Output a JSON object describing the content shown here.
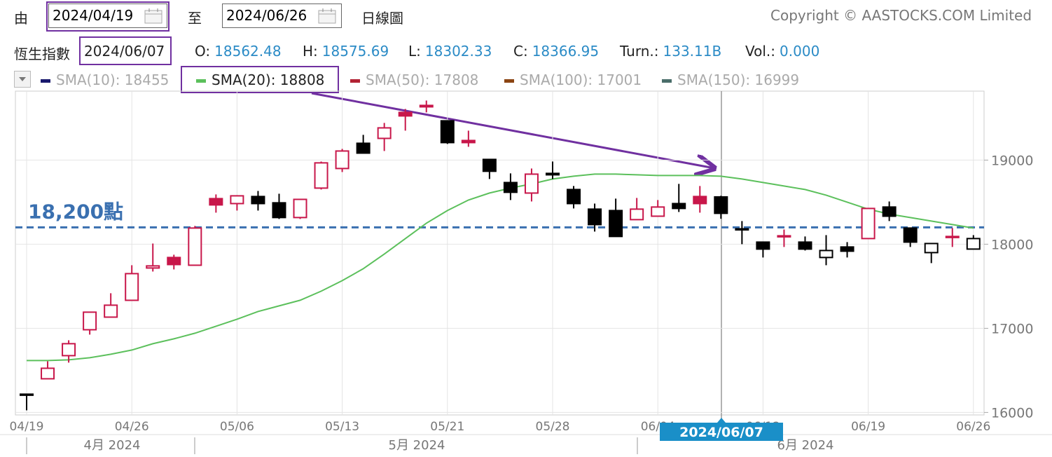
{
  "toolbar": {
    "from_label": "由",
    "from_date": "2024/04/19",
    "to_label": "至",
    "to_date": "2024/06/26",
    "chart_type": "日線圖",
    "copyright": "Copyright © AASTOCKS.COM Limited"
  },
  "info": {
    "index_name": "恆生指數",
    "date": "2024/06/07",
    "fields": [
      {
        "label": "O:",
        "value": 18562.48
      },
      {
        "label": "H:",
        "value": 18575.69
      },
      {
        "label": "L:",
        "value": 18302.33
      },
      {
        "label": "C:",
        "value": 18366.95
      },
      {
        "label": "Turn.:",
        "value": "133.11B"
      },
      {
        "label": "Vol.:",
        "value": "0.000"
      }
    ]
  },
  "chart_data": {
    "type": "candlestick",
    "categories": [
      "04/19",
      null,
      null,
      null,
      null,
      "04/26",
      null,
      null,
      null,
      null,
      "05/06",
      null,
      null,
      null,
      null,
      "05/13",
      null,
      null,
      null,
      null,
      "05/21",
      null,
      null,
      null,
      null,
      "05/28",
      null,
      null,
      null,
      null,
      "06/04",
      null,
      null,
      null,
      null,
      "06/12",
      null,
      null,
      null,
      null,
      "06/19",
      null,
      null,
      null,
      null,
      "06/26"
    ],
    "open": [
      16217,
      16400,
      16675,
      16983,
      17133,
      17333,
      17717,
      17842,
      17750,
      18542,
      18483,
      18567,
      18492,
      18317,
      18667,
      18900,
      19200,
      19258,
      19567,
      19650,
      19467,
      19233,
      19008,
      18733,
      18608,
      18842,
      18650,
      18417,
      18400,
      18292,
      18333,
      18483,
      18567,
      18562.48,
      18183,
      18025,
      18100,
      18025,
      17842,
      17967,
      18067,
      18442,
      18192,
      17900,
      18092,
      17942
    ],
    "high": [
      16217,
      16608,
      16858,
      17192,
      17417,
      17750,
      18008,
      17875,
      18217,
      18592,
      18583,
      18633,
      18600,
      18533,
      18983,
      19133,
      19300,
      19442,
      19608,
      19708,
      19467,
      19350,
      19008,
      18842,
      18900,
      18983,
      18692,
      18483,
      18542,
      18550,
      18525,
      18717,
      18692,
      18575.69,
      18275,
      18025,
      18175,
      18092,
      18108,
      18025,
      18425,
      18508,
      18192,
      18008,
      18192,
      18108
    ],
    "low": [
      16025,
      16400,
      16592,
      16925,
      17133,
      17333,
      17675,
      17700,
      17750,
      18375,
      18400,
      18400,
      18300,
      18300,
      18650,
      18858,
      19083,
      19108,
      19350,
      19567,
      19192,
      19158,
      18775,
      18525,
      18508,
      18775,
      18425,
      18150,
      18092,
      18292,
      18333,
      18383,
      18375,
      18302.33,
      18000,
      17842,
      17967,
      17925,
      17750,
      17842,
      18067,
      18275,
      17967,
      17775,
      17967,
      17942
    ],
    "close": [
      16217,
      16525,
      16817,
      17192,
      17275,
      17650,
      17742,
      17758,
      18192,
      18467,
      18575,
      18483,
      18317,
      18533,
      18967,
      19108,
      19083,
      19383,
      19525,
      19633,
      19208,
      19208,
      18867,
      18617,
      18833,
      18825,
      18483,
      18233,
      18092,
      18417,
      18442,
      18425,
      18483,
      18366.95,
      18175,
      17942,
      18092,
      17942,
      17925,
      17917,
      18425,
      18333,
      18025,
      18008,
      18083,
      18067
    ],
    "up_color": "#c8174a",
    "down_color": "#000000",
    "overlays": [
      {
        "name": "SMA(20)",
        "color": "#5cc05c",
        "values": [
          16617,
          16617,
          16625,
          16650,
          16692,
          16742,
          16817,
          16875,
          16942,
          17025,
          17108,
          17200,
          17267,
          17333,
          17442,
          17567,
          17708,
          17883,
          18067,
          18250,
          18400,
          18525,
          18608,
          18667,
          18717,
          18775,
          18808,
          18833,
          18833,
          18825,
          18817,
          18817,
          18817,
          18808,
          18775,
          18733,
          18692,
          18650,
          18583,
          18500,
          18417,
          18358,
          18317,
          18275,
          18233,
          18192
        ]
      }
    ],
    "legend": [
      {
        "label": "SMA(10): 18455",
        "color": "#1a1a6e",
        "active": false
      },
      {
        "label": "SMA(20): 18808",
        "color": "#5cc05c",
        "active": true
      },
      {
        "label": "SMA(50): 17808",
        "color": "#b22234",
        "active": false
      },
      {
        "label": "SMA(100): 17001",
        "color": "#8b4513",
        "active": false
      },
      {
        "label": "SMA(150): 16999",
        "color": "#4a6e6a",
        "active": false
      }
    ],
    "ylim": [
      15970,
      19820
    ],
    "yticks": [
      16000,
      17000,
      18000,
      19000
    ],
    "grid": true,
    "month_labels": [
      "4月 2024",
      "5月 2024",
      "6月 2024"
    ],
    "cursor_label": "2024/06/07",
    "annotations": [
      {
        "text": "18,200點",
        "value": 18200,
        "color": "#3a70b0"
      }
    ]
  }
}
